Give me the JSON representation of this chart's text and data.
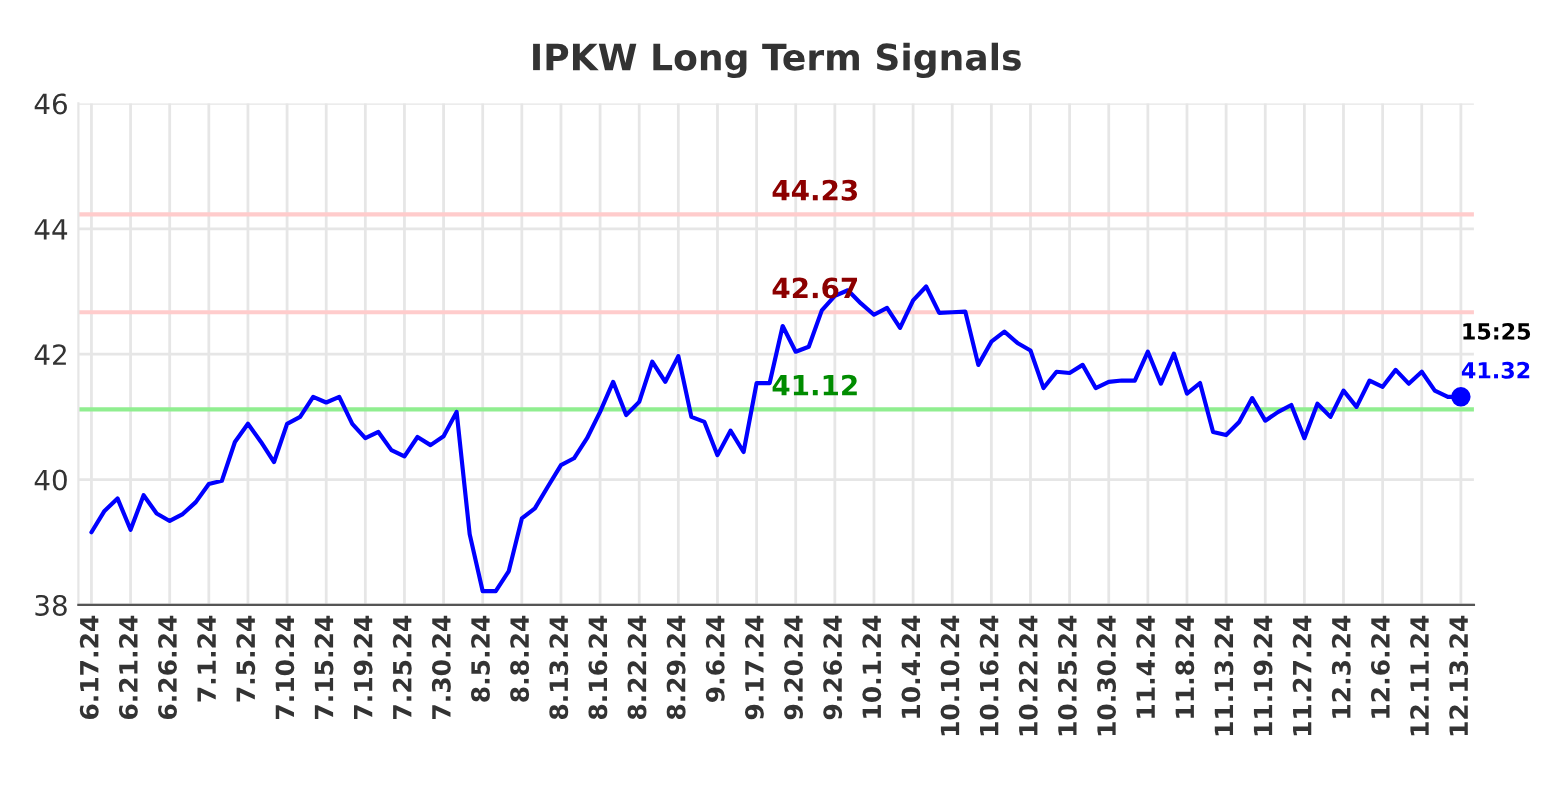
{
  "chart_data": {
    "type": "line",
    "title": "IPKW Long Term Signals",
    "categories": [
      "6.17.24",
      null,
      null,
      "6.21.24",
      null,
      null,
      "6.26.24",
      null,
      null,
      "7.1.24",
      null,
      null,
      "7.5.24",
      null,
      null,
      "7.10.24",
      null,
      null,
      "7.15.24",
      null,
      null,
      "7.19.24",
      null,
      null,
      "7.25.24",
      null,
      null,
      "7.30.24",
      null,
      null,
      "8.5.24",
      null,
      null,
      "8.8.24",
      null,
      null,
      "8.13.24",
      null,
      null,
      "8.16.24",
      null,
      null,
      "8.22.24",
      null,
      null,
      "8.29.24",
      null,
      null,
      "9.6.24",
      null,
      null,
      "9.17.24",
      null,
      null,
      "9.20.24",
      null,
      null,
      "9.26.24",
      null,
      null,
      "10.1.24",
      null,
      null,
      "10.4.24",
      null,
      null,
      "10.10.24",
      null,
      null,
      "10.16.24",
      null,
      null,
      "10.22.24",
      null,
      null,
      "10.25.24",
      null,
      null,
      "10.30.24",
      null,
      null,
      "11.4.24",
      null,
      null,
      "11.8.24",
      null,
      null,
      "11.13.24",
      null,
      null,
      "11.19.24",
      null,
      null,
      "11.27.24",
      null,
      null,
      "12.3.24",
      null,
      null,
      "12.6.24",
      null,
      null,
      "12.11.24",
      null,
      null,
      "12.13.24"
    ],
    "series": [
      {
        "color": "#0000ff",
        "values": [
          39.16,
          39.5,
          39.7,
          39.2,
          39.75,
          39.46,
          39.34,
          39.45,
          39.64,
          39.93,
          39.98,
          40.6,
          40.89,
          40.6,
          40.28,
          40.89,
          41.0,
          41.32,
          41.23,
          41.32,
          40.89,
          40.66,
          40.76,
          40.47,
          40.37,
          40.68,
          40.55,
          40.69,
          41.08,
          39.13,
          38.22,
          38.22,
          38.54,
          39.38,
          39.54,
          39.89,
          40.23,
          40.34,
          40.66,
          41.08,
          41.56,
          41.03,
          41.24,
          41.88,
          41.56,
          41.97,
          41.0,
          40.92,
          40.39,
          40.78,
          40.44,
          41.54,
          41.54,
          42.45,
          42.04,
          42.12,
          42.7,
          42.93,
          43.02,
          42.81,
          42.63,
          42.74,
          42.42,
          42.86,
          43.08,
          42.66,
          42.67,
          42.68,
          41.83,
          42.2,
          42.36,
          42.18,
          42.06,
          41.46,
          41.72,
          41.7,
          41.83,
          41.46,
          41.56,
          41.58,
          41.58,
          42.04,
          41.53,
          42.01,
          41.37,
          41.54,
          40.76,
          40.71,
          40.92,
          41.3,
          40.94,
          41.08,
          41.19,
          40.66,
          41.21,
          41.0,
          41.42,
          41.16,
          41.58,
          41.48,
          41.75,
          41.53,
          41.72,
          41.42,
          41.32,
          41.32
        ]
      },
      {
        "type": "scatter",
        "color": "#0000ff",
        "x": [
          "12.13.24"
        ],
        "values": [
          41.32
        ]
      }
    ],
    "ylim": [
      38,
      46
    ],
    "yticks": [
      38,
      40,
      42,
      44,
      46
    ],
    "grid": true,
    "ref_lines": [
      {
        "axis": "y",
        "value": 44.23,
        "label": "44.23",
        "color": "#ffcccc"
      },
      {
        "axis": "y",
        "value": 42.67,
        "label": "42.67",
        "color": "#ffcccc"
      },
      {
        "axis": "y",
        "value": 41.12,
        "label": "41.12",
        "color": "#90ee90"
      }
    ],
    "annotations": [
      {
        "text": "15:25",
        "x": "12.13.24",
        "y": 41.32
      },
      {
        "text": "41.32",
        "x": "12.13.24",
        "y": 41.32
      }
    ]
  }
}
